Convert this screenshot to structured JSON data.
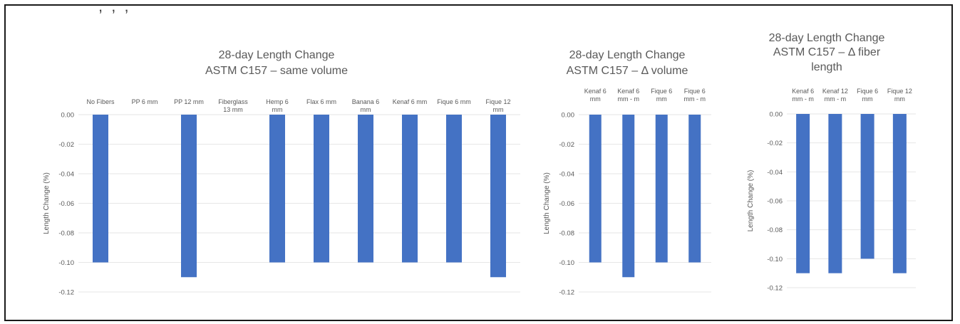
{
  "chart_data": [
    {
      "type": "bar",
      "title": [
        "28-day Length Change",
        "ASTM C157 – same volume"
      ],
      "ylabel": "Length Change (%)",
      "ylim": [
        -0.12,
        0
      ],
      "yticks": [
        "0.00",
        "-0.02",
        "-0.04",
        "-0.06",
        "-0.08",
        "-0.10",
        "-0.12"
      ],
      "grid": true,
      "categories": [
        [
          "No Fibers"
        ],
        [
          "PP 6 mm"
        ],
        [
          "PP 12 mm"
        ],
        [
          "Fiberglass",
          "13 mm"
        ],
        [
          "Hemp 6",
          "mm"
        ],
        [
          "Flax 6 mm"
        ],
        [
          "Banana 6",
          "mm"
        ],
        [
          "Kenaf 6 mm"
        ],
        [
          "Fique 6 mm"
        ],
        [
          "Fique 12",
          "mm"
        ]
      ],
      "values": [
        -0.1,
        0,
        -0.11,
        0,
        -0.1,
        -0.1,
        -0.1,
        -0.1,
        -0.1,
        -0.11
      ],
      "color": "#4472c4"
    },
    {
      "type": "bar",
      "title": [
        "28-day Length Change",
        "ASTM C157 – Δ volume"
      ],
      "ylabel": "Length Change (%)",
      "ylim": [
        -0.12,
        0
      ],
      "yticks": [
        "0.00",
        "-0.02",
        "-0.04",
        "-0.06",
        "-0.08",
        "-0.10",
        "-0.12"
      ],
      "grid": true,
      "categories": [
        [
          "Kenaf 6",
          "mm"
        ],
        [
          "Kenaf 6",
          "mm - m"
        ],
        [
          "Fique 6",
          "mm"
        ],
        [
          "Fique 6",
          "mm - m"
        ]
      ],
      "values": [
        -0.1,
        -0.11,
        -0.1,
        -0.1
      ],
      "color": "#4472c4"
    },
    {
      "type": "bar",
      "title": [
        "28-day Length Change",
        "ASTM C157 – Δ fiber",
        "length"
      ],
      "ylabel": "Length Change (%)",
      "ylim": [
        -0.12,
        0
      ],
      "yticks": [
        "0.00",
        "-0.02",
        "-0.04",
        "-0.06",
        "-0.08",
        "-0.10",
        "-0.12"
      ],
      "grid": true,
      "categories": [
        [
          "Kenaf 6",
          "mm - m"
        ],
        [
          "Kenaf 12",
          "mm - m"
        ],
        [
          "Fique 6",
          "mm"
        ],
        [
          "Fique 12",
          "mm"
        ]
      ],
      "values": [
        -0.11,
        -0.11,
        -0.1,
        -0.11
      ],
      "color": "#4472c4"
    }
  ]
}
